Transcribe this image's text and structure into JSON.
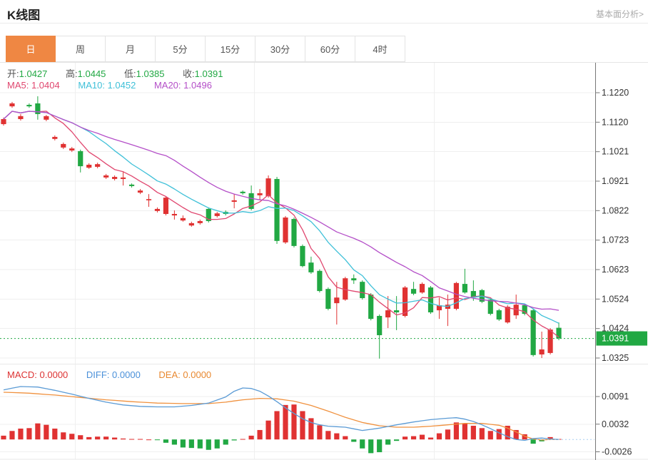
{
  "header": {
    "title": "K线图",
    "link": "基本面分析>"
  },
  "tabs": {
    "active_index": 0,
    "items": [
      {
        "label": "日"
      },
      {
        "label": "周"
      },
      {
        "label": "月"
      },
      {
        "label": "5分"
      },
      {
        "label": "15分"
      },
      {
        "label": "30分"
      },
      {
        "label": "60分"
      },
      {
        "label": "4时"
      }
    ]
  },
  "legend": {
    "ohlc": [
      {
        "label": "开:",
        "value": "1.0427"
      },
      {
        "label": "高:",
        "value": "1.0445"
      },
      {
        "label": "低:",
        "value": "1.0385"
      },
      {
        "label": "收:",
        "value": "1.0391"
      }
    ],
    "ma": [
      {
        "label": "MA5:",
        "value": "1.0404",
        "color": "#e0476f"
      },
      {
        "label": "MA10:",
        "value": "1.0452",
        "color": "#3fc0d8"
      },
      {
        "label": "MA20:",
        "value": "1.0496",
        "color": "#b44fc8"
      }
    ]
  },
  "macd_legend": [
    {
      "label": "MACD:",
      "value": "0.0000",
      "color": "#dd3333"
    },
    {
      "label": "DIFF:",
      "value": "0.0000",
      "color": "#4a90d9"
    },
    {
      "label": "DEA:",
      "value": "0.0000",
      "color": "#e8882f"
    }
  ],
  "colors": {
    "accent_orange": "#ef8743",
    "up_red": "#e03232",
    "down_green": "#21a843",
    "value_green": "#21a843",
    "ma5_pink": "#e0476f",
    "ma10_cyan": "#3fc0d8",
    "ma20_purple": "#b44fc8",
    "diff_blue": "#5b9bd5",
    "dea_orange": "#f0913e",
    "grid": "#efefef",
    "axis": "#777777",
    "tick_text": "#333333"
  },
  "chart_data": {
    "type": "candlestick+macd",
    "title": "K线图 (daily K-line with MA5/MA10/MA20 and MACD)",
    "legend_position": "top-left",
    "grid": true,
    "price_axis": {
      "tick_labels": [
        "1.1220",
        "1.1120",
        "1.1021",
        "1.0921",
        "1.0822",
        "1.0723",
        "1.0623",
        "1.0524",
        "1.0424",
        "1.0325"
      ],
      "tick_values": [
        1.122,
        1.112,
        1.1021,
        1.0921,
        1.0822,
        1.0723,
        1.0623,
        1.0524,
        1.0424,
        1.0325
      ],
      "range": [
        1.0325,
        1.122
      ],
      "last_price": 1.0391,
      "last_price_label": "1.0391"
    },
    "macd_axis": {
      "tick_labels": [
        "0.0091",
        "0.0032",
        "-0.0026"
      ],
      "tick_values": [
        0.0091,
        0.0032,
        -0.0026
      ]
    },
    "ma_windows": [
      5,
      10,
      20
    ],
    "candles_ohlc": [
      [
        1.1114,
        1.1136,
        1.1109,
        1.1131
      ],
      [
        1.1174,
        1.1189,
        1.1169,
        1.1184
      ],
      [
        1.1131,
        1.1148,
        1.1126,
        1.1141
      ],
      [
        1.1179,
        1.1184,
        1.1169,
        1.1174
      ],
      [
        1.1184,
        1.1208,
        1.1129,
        1.1148
      ],
      [
        1.1129,
        1.1145,
        1.1124,
        1.1141
      ],
      [
        1.1064,
        1.1076,
        1.1059,
        1.1071
      ],
      [
        1.1035,
        1.1052,
        1.103,
        1.1047
      ],
      [
        1.1025,
        1.1037,
        1.102,
        1.1032
      ],
      [
        1.1023,
        1.1028,
        1.0951,
        1.0972
      ],
      [
        1.0967,
        1.0982,
        1.0963,
        1.0977
      ],
      [
        1.097,
        1.0984,
        1.0965,
        1.0979
      ],
      [
        1.0934,
        1.0946,
        1.0929,
        1.0941
      ],
      [
        1.0929,
        1.0941,
        1.0924,
        1.0936
      ],
      [
        1.0929,
        1.0955,
        1.0907,
        1.0934
      ],
      [
        1.091,
        1.0914,
        1.09,
        1.0905
      ],
      [
        1.0883,
        1.0895,
        1.0878,
        1.089
      ],
      [
        1.0857,
        1.0878,
        1.0835,
        1.0861
      ],
      [
        1.0821,
        1.0833,
        1.0816,
        1.0828
      ],
      [
        1.0811,
        1.0871,
        1.0806,
        1.0866
      ],
      [
        1.0806,
        1.0823,
        1.0792,
        1.0811
      ],
      [
        1.0789,
        1.0806,
        1.0785,
        1.0797
      ],
      [
        1.0772,
        1.0785,
        1.0768,
        1.078
      ],
      [
        1.078,
        1.0792,
        1.0775,
        1.0787
      ],
      [
        1.0828,
        1.0833,
        1.0782,
        1.0787
      ],
      [
        1.0804,
        1.0818,
        1.0799,
        1.0813
      ],
      [
        1.0818,
        1.0823,
        1.0806,
        1.0811
      ],
      [
        1.0852,
        1.0878,
        1.083,
        1.0857
      ],
      [
        1.0886,
        1.089,
        1.0876,
        1.0881
      ],
      [
        1.0881,
        1.0907,
        1.0823,
        1.0828
      ],
      [
        1.0874,
        1.0895,
        1.0859,
        1.0881
      ],
      [
        1.0871,
        1.0941,
        1.0866,
        1.0931
      ],
      [
        1.0929,
        1.0936,
        1.071,
        1.072
      ],
      [
        1.0715,
        1.0804,
        1.071,
        1.0799
      ],
      [
        1.0794,
        1.0799,
        1.0698,
        1.0703
      ],
      [
        1.0703,
        1.0708,
        1.0631,
        1.0635
      ],
      [
        1.0647,
        1.0667,
        1.0609,
        1.0614
      ],
      [
        1.0619,
        1.0624,
        1.0546,
        1.0551
      ],
      [
        1.0558,
        1.0563,
        1.0486,
        1.0491
      ],
      [
        1.051,
        1.0582,
        1.0438,
        1.0529
      ],
      [
        1.0522,
        1.0599,
        1.0518,
        1.0594
      ],
      [
        1.0594,
        1.0607,
        1.0575,
        1.0587
      ],
      [
        1.0582,
        1.0587,
        1.0522,
        1.0527
      ],
      [
        1.0539,
        1.0544,
        1.0452,
        1.0457
      ],
      [
        1.0467,
        1.0472,
        1.0323,
        1.0402
      ],
      [
        1.0462,
        1.0534,
        1.0426,
        1.0486
      ],
      [
        1.0486,
        1.0534,
        1.0419,
        1.0479
      ],
      [
        1.0467,
        1.0568,
        1.0462,
        1.0563
      ],
      [
        1.0558,
        1.0582,
        1.0537,
        1.0542
      ],
      [
        1.0546,
        1.058,
        1.0542,
        1.0575
      ],
      [
        1.0563,
        1.0568,
        1.0474,
        1.0479
      ],
      [
        1.0486,
        1.0529,
        1.0457,
        1.0503
      ],
      [
        1.0491,
        1.0539,
        1.0433,
        1.0505
      ],
      [
        1.0491,
        1.0582,
        1.0486,
        1.0578
      ],
      [
        1.0575,
        1.0626,
        1.0542,
        1.0546
      ],
      [
        1.0551,
        1.0587,
        1.0518,
        1.0529
      ],
      [
        1.0554,
        1.0558,
        1.051,
        1.0515
      ],
      [
        1.0522,
        1.0527,
        1.0469,
        1.0474
      ],
      [
        1.0486,
        1.0491,
        1.045,
        1.0455
      ],
      [
        1.0445,
        1.0503,
        1.0441,
        1.0498
      ],
      [
        1.0469,
        1.0539,
        1.0457,
        1.0505
      ],
      [
        1.0503,
        1.0508,
        1.0469,
        1.0474
      ],
      [
        1.0486,
        1.0491,
        1.033,
        1.0335
      ],
      [
        1.0337,
        1.0414,
        1.0325,
        1.0354
      ],
      [
        1.0342,
        1.0426,
        1.0337,
        1.0421
      ],
      [
        1.0427,
        1.0445,
        1.0385,
        1.0391
      ]
    ],
    "macd_hist": [
      0.0008,
      0.0018,
      0.0023,
      0.0024,
      0.0034,
      0.0031,
      0.0023,
      0.0015,
      0.0012,
      0.0009,
      0.0005,
      0.0006,
      0.0006,
      0.0004,
      0.0002,
      0.0001,
      0.0001,
      0.0,
      -0.0001,
      -0.0007,
      -0.0011,
      -0.0017,
      -0.0018,
      -0.0019,
      -0.0022,
      -0.0019,
      -0.0011,
      -0.0002,
      0.0001,
      0.0008,
      0.002,
      0.004,
      0.006,
      0.0073,
      0.0074,
      0.006,
      0.0045,
      0.003,
      0.0018,
      0.0013,
      0.0007,
      -0.0005,
      -0.0019,
      -0.0029,
      -0.0027,
      -0.0011,
      -0.0003,
      0.0006,
      0.0007,
      0.001,
      0.0004,
      0.0013,
      0.0021,
      0.0036,
      0.0034,
      0.0029,
      0.0024,
      0.0018,
      0.0022,
      0.0029,
      0.002,
      0.0011,
      -0.0009,
      -0.0004,
      0.0005,
      0.0001
    ],
    "diff_points": [
      [
        0,
        0.0105
      ],
      [
        2,
        0.0112
      ],
      [
        4,
        0.0111
      ],
      [
        6,
        0.0104
      ],
      [
        8,
        0.0096
      ],
      [
        10,
        0.0087
      ],
      [
        12,
        0.0079
      ],
      [
        14,
        0.0073
      ],
      [
        16,
        0.007
      ],
      [
        18,
        0.0069
      ],
      [
        20,
        0.0069
      ],
      [
        22,
        0.0072
      ],
      [
        24,
        0.0077
      ],
      [
        26,
        0.009
      ],
      [
        27,
        0.0102
      ],
      [
        28,
        0.0109
      ],
      [
        29,
        0.0108
      ],
      [
        30,
        0.0102
      ],
      [
        31,
        0.0092
      ],
      [
        32,
        0.008
      ],
      [
        33,
        0.0067
      ],
      [
        34,
        0.0055
      ],
      [
        35,
        0.0044
      ],
      [
        36,
        0.0036
      ],
      [
        37,
        0.0031
      ],
      [
        38,
        0.0028
      ],
      [
        40,
        0.0026
      ],
      [
        42,
        0.0019
      ],
      [
        44,
        0.0024
      ],
      [
        46,
        0.0031
      ],
      [
        48,
        0.0037
      ],
      [
        50,
        0.0042
      ],
      [
        52,
        0.0045
      ],
      [
        53,
        0.0046
      ],
      [
        54,
        0.0043
      ],
      [
        55,
        0.0038
      ],
      [
        56,
        0.0031
      ],
      [
        57,
        0.0023
      ],
      [
        58,
        0.0014
      ],
      [
        59,
        0.0006
      ],
      [
        60,
        0.0
      ],
      [
        61,
        -0.0002
      ],
      [
        62,
        0.0002
      ],
      [
        63,
        0.0003
      ],
      [
        64,
        0.0001
      ],
      [
        65,
        0.0
      ]
    ],
    "dea_points": [
      [
        0,
        0.01
      ],
      [
        3,
        0.0098
      ],
      [
        6,
        0.0094
      ],
      [
        9,
        0.0089
      ],
      [
        12,
        0.0084
      ],
      [
        15,
        0.008
      ],
      [
        18,
        0.0077
      ],
      [
        21,
        0.0076
      ],
      [
        24,
        0.0076
      ],
      [
        26,
        0.0079
      ],
      [
        28,
        0.0084
      ],
      [
        30,
        0.0087
      ],
      [
        32,
        0.0086
      ],
      [
        34,
        0.0081
      ],
      [
        36,
        0.0072
      ],
      [
        38,
        0.006
      ],
      [
        40,
        0.0047
      ],
      [
        42,
        0.0036
      ],
      [
        44,
        0.0029
      ],
      [
        46,
        0.0026
      ],
      [
        48,
        0.0026
      ],
      [
        50,
        0.0028
      ],
      [
        52,
        0.0031
      ],
      [
        54,
        0.0034
      ],
      [
        56,
        0.0034
      ],
      [
        58,
        0.003
      ],
      [
        59,
        0.0024
      ],
      [
        60,
        0.0016
      ],
      [
        61,
        0.0007
      ],
      [
        62,
        0.0001
      ],
      [
        63,
        -0.0001
      ],
      [
        64,
        0.0
      ],
      [
        65,
        0.0
      ]
    ]
  }
}
